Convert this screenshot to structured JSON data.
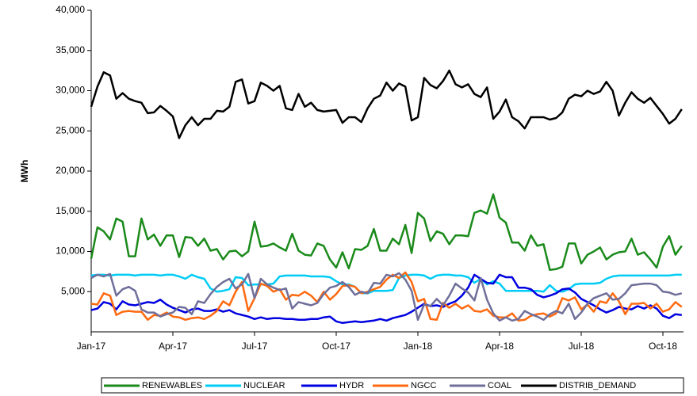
{
  "chart_data": {
    "type": "line",
    "y_label": "MWh",
    "categories": [
      "Jan-17",
      null,
      null,
      null,
      null,
      null,
      null,
      null,
      null,
      null,
      null,
      null,
      null,
      "Apr-17",
      null,
      null,
      null,
      null,
      null,
      null,
      null,
      null,
      null,
      null,
      null,
      null,
      "Jul-17",
      null,
      null,
      null,
      null,
      null,
      null,
      null,
      null,
      null,
      null,
      null,
      null,
      "Oct-17",
      null,
      null,
      null,
      null,
      null,
      null,
      null,
      null,
      null,
      null,
      null,
      null,
      "Jan-18",
      null,
      null,
      null,
      null,
      null,
      null,
      null,
      null,
      null,
      null,
      null,
      null,
      "Apr-18",
      null,
      null,
      null,
      null,
      null,
      null,
      null,
      null,
      null,
      null,
      null,
      null,
      "Jul-18",
      null,
      null,
      null,
      null,
      null,
      null,
      null,
      null,
      null,
      null,
      null,
      null,
      "Oct-18",
      null,
      null,
      null
    ],
    "ylim": [
      0,
      40000
    ],
    "yticks": [
      {
        "value": 5000,
        "label": "5,000"
      },
      {
        "value": 10000,
        "label": "10,000"
      },
      {
        "value": 15000,
        "label": "15,000"
      },
      {
        "value": 20000,
        "label": "20,000"
      },
      {
        "value": 25000,
        "label": "25,000"
      },
      {
        "value": 30000,
        "label": "30,000"
      },
      {
        "value": 35000,
        "label": "35,000"
      },
      {
        "value": 40000,
        "label": "40,000"
      }
    ],
    "grid": false,
    "legend": "bottom",
    "series": [
      {
        "name": "RENEWABLES",
        "color": "#1a8a1a",
        "values": [
          9100,
          13000,
          12500,
          11500,
          14100,
          13700,
          9400,
          9400,
          14100,
          11500,
          12100,
          10700,
          12000,
          12000,
          9300,
          11800,
          11700,
          10700,
          11600,
          10100,
          10300,
          9000,
          10000,
          10100,
          9400,
          10000,
          13700,
          10600,
          10700,
          11000,
          10500,
          10100,
          12200,
          10100,
          9600,
          9500,
          11000,
          10700,
          9000,
          8000,
          9900,
          7900,
          10300,
          10200,
          10700,
          12800,
          10100,
          10100,
          11600,
          10900,
          13300,
          9800,
          14800,
          14100,
          11300,
          12500,
          12200,
          10900,
          12000,
          12000,
          11900,
          14800,
          15100,
          14700,
          17100,
          14200,
          13600,
          11100,
          11100,
          10100,
          12000,
          10700,
          10900,
          7700,
          7800,
          8100,
          11000,
          11000,
          8500,
          9600,
          10000,
          10500,
          9000,
          9600,
          9900,
          10000,
          11600,
          9600,
          9900,
          9000,
          8000,
          10600,
          11900,
          9600,
          10700
        ]
      },
      {
        "name": "NUCLEAR",
        "color": "#00ccf5",
        "values": [
          7000,
          7100,
          7100,
          7000,
          7100,
          7100,
          7100,
          7000,
          7100,
          7100,
          7100,
          7000,
          7100,
          7100,
          6900,
          6600,
          7100,
          6800,
          6600,
          5400,
          5000,
          5100,
          5300,
          6800,
          6700,
          5800,
          5900,
          5900,
          5900,
          6000,
          6900,
          7000,
          7000,
          7000,
          7000,
          6900,
          6900,
          6900,
          6800,
          6300,
          5900,
          5900,
          5600,
          4800,
          4800,
          5100,
          5100,
          5100,
          5200,
          6700,
          7000,
          7100,
          7100,
          7000,
          6600,
          7000,
          7100,
          7100,
          7000,
          7000,
          6800,
          6100,
          6600,
          5900,
          6300,
          6000,
          5100,
          5100,
          5100,
          5100,
          5100,
          5100,
          5000,
          5800,
          5100,
          5000,
          5300,
          5900,
          6000,
          6000,
          6000,
          6100,
          6600,
          6900,
          7000,
          7000,
          7000,
          7000,
          7000,
          7000,
          7000,
          7000,
          7000,
          7100,
          7100
        ]
      },
      {
        "name": "HYDR",
        "color": "#0000e0",
        "values": [
          2700,
          2900,
          3700,
          3500,
          2800,
          3800,
          3400,
          3300,
          3500,
          3700,
          3600,
          4000,
          3400,
          3000,
          2700,
          2400,
          2800,
          2900,
          2600,
          2600,
          2800,
          2500,
          2700,
          2300,
          2100,
          1900,
          1600,
          1800,
          1600,
          1700,
          1700,
          1600,
          1600,
          1500,
          1500,
          1600,
          1600,
          1800,
          1900,
          1300,
          1100,
          1200,
          1300,
          1200,
          1300,
          1400,
          1600,
          1400,
          1700,
          1900,
          2100,
          2500,
          3000,
          3500,
          3200,
          3300,
          3100,
          3500,
          3800,
          4500,
          5500,
          7100,
          6600,
          6100,
          6000,
          7100,
          6800,
          6800,
          5500,
          5500,
          5300,
          4600,
          4300,
          4500,
          4800,
          5300,
          5400,
          4900,
          4100,
          3700,
          3300,
          2800,
          2400,
          2700,
          3100,
          2900,
          2800,
          3200,
          2900,
          3300,
          2900,
          2000,
          1700,
          2200,
          2100
        ]
      },
      {
        "name": "NGCC",
        "color": "#ff6a10",
        "values": [
          3500,
          3400,
          4800,
          4500,
          2100,
          2500,
          2600,
          2500,
          2500,
          1500,
          2100,
          2000,
          2400,
          1900,
          1800,
          1500,
          1700,
          1800,
          1600,
          2000,
          2600,
          3800,
          3300,
          5000,
          6200,
          2600,
          4200,
          6000,
          5700,
          5000,
          5300,
          4000,
          4600,
          4500,
          5000,
          4500,
          3700,
          5000,
          4000,
          4700,
          5700,
          5800,
          5600,
          4800,
          5000,
          5300,
          5600,
          6500,
          7100,
          6700,
          7400,
          6200,
          3800,
          4100,
          1600,
          1500,
          3600,
          3000,
          3500,
          2900,
          3300,
          2600,
          2500,
          2800,
          2000,
          1800,
          1800,
          2300,
          1400,
          1500,
          2000,
          2200,
          2300,
          1900,
          2300,
          4200,
          3900,
          4300,
          2800,
          3400,
          2500,
          3800,
          3600,
          4800,
          3800,
          2200,
          3500,
          3500,
          3600,
          2900,
          3500,
          2500,
          2800,
          3700,
          3100
        ]
      },
      {
        "name": "COAL",
        "color": "#6f6f9a",
        "values": [
          6700,
          7100,
          6900,
          7200,
          4500,
          5300,
          5600,
          5100,
          2800,
          2400,
          2400,
          1900,
          2200,
          2400,
          3100,
          3000,
          2200,
          3800,
          3600,
          4700,
          5600,
          6200,
          6600,
          5400,
          5900,
          7200,
          4200,
          6600,
          5900,
          5500,
          5200,
          5400,
          2900,
          3700,
          3500,
          3300,
          3600,
          4700,
          5500,
          5700,
          6200,
          5600,
          4600,
          5000,
          4800,
          6100,
          6000,
          7100,
          6900,
          7300,
          6500,
          5100,
          1500,
          3400,
          3200,
          4100,
          3300,
          4500,
          6000,
          5400,
          4900,
          3900,
          6700,
          4000,
          2300,
          1400,
          1800,
          1400,
          1600,
          2600,
          2200,
          1900,
          1500,
          2200,
          2600,
          2300,
          3500,
          1600,
          2400,
          3500,
          4200,
          4500,
          4800,
          4000,
          4100,
          4800,
          5800,
          5900,
          6000,
          6000,
          5800,
          5000,
          4900,
          4600,
          4800
        ]
      },
      {
        "name": "DISTRIB_DEMAND",
        "color": "#000000",
        "values": [
          28000,
          30500,
          32300,
          31900,
          29000,
          29700,
          29000,
          28700,
          28500,
          27200,
          27300,
          28100,
          27500,
          26800,
          24100,
          25700,
          26700,
          25700,
          26500,
          26500,
          27500,
          27400,
          28000,
          31100,
          31400,
          28400,
          28700,
          31000,
          30600,
          30000,
          30600,
          27800,
          27600,
          29600,
          28000,
          28500,
          27600,
          27400,
          27500,
          27600,
          26000,
          26700,
          26700,
          26100,
          27800,
          29000,
          29400,
          31000,
          30000,
          30900,
          30500,
          26300,
          26700,
          31600,
          30700,
          30300,
          31200,
          32500,
          30800,
          30400,
          30800,
          29600,
          29200,
          30400,
          26500,
          27400,
          28900,
          26700,
          26200,
          25300,
          26700,
          26700,
          26700,
          26400,
          26600,
          27300,
          29000,
          29500,
          29300,
          30000,
          29600,
          29900,
          31100,
          30000,
          26900,
          28500,
          29800,
          29000,
          28500,
          29100,
          28100,
          27100,
          25900,
          26500,
          27700
        ]
      }
    ]
  }
}
